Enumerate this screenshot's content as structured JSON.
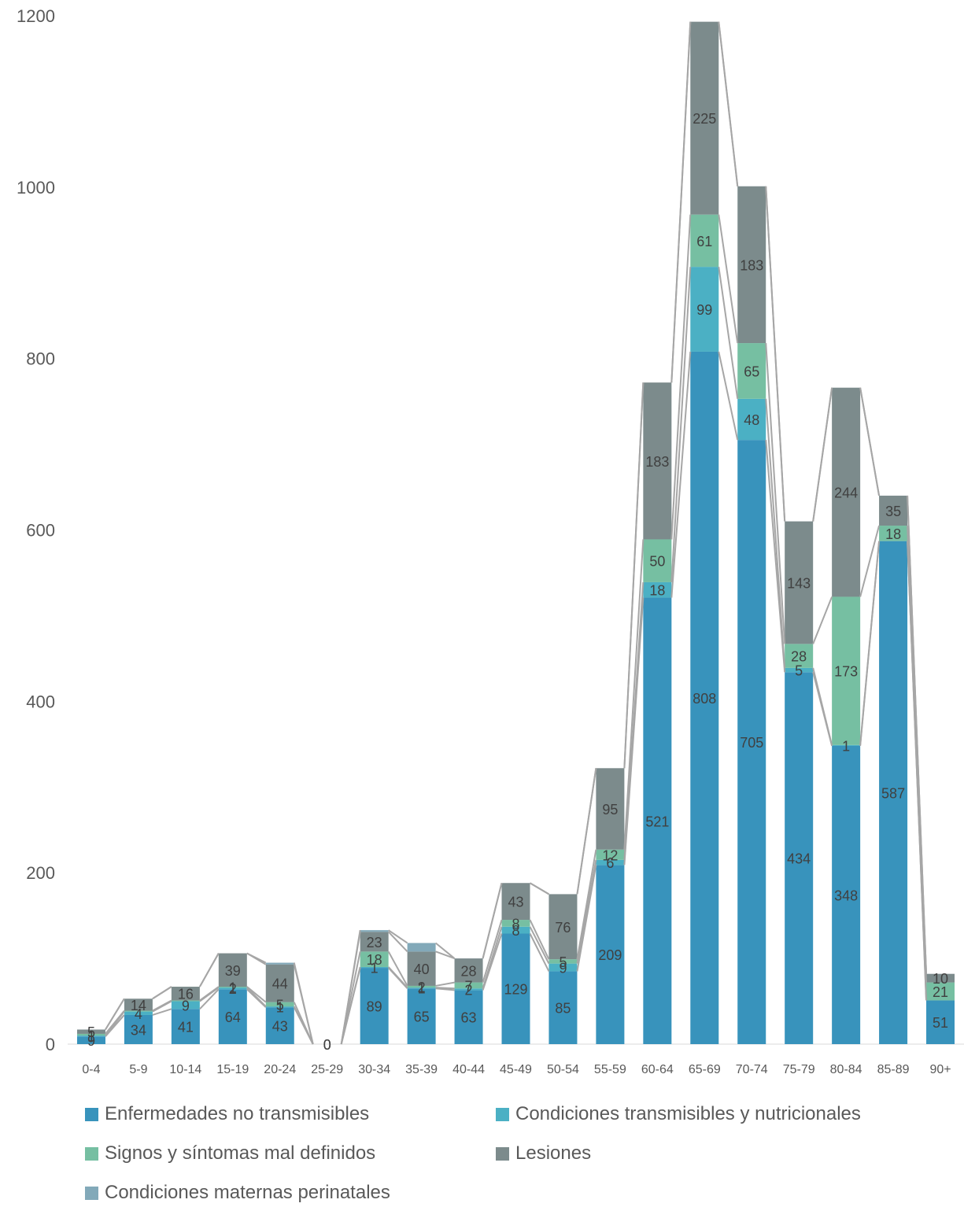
{
  "chart_data": {
    "type": "bar",
    "stacked": true,
    "title": "",
    "xlabel": "",
    "ylabel": "",
    "ylim": [
      0,
      1200
    ],
    "yticks": [
      "0",
      "200",
      "400",
      "600",
      "800",
      "1000",
      "1200"
    ],
    "grid": false,
    "legend_position": "bottom",
    "series_lines": true,
    "categories": [
      "0-4",
      "5-9",
      "10-14",
      "15-19",
      "20-24",
      "25-29",
      "30-34",
      "35-39",
      "40-44",
      "45-49",
      "50-54",
      "55-59",
      "60-64",
      "65-69",
      "70-74",
      "75-79",
      "80-84",
      "85-89",
      "90+"
    ],
    "series": [
      {
        "name": "Enfermedades no transmisibles",
        "color": "#3893BC",
        "values": [
          9,
          34,
          41,
          64,
          43,
          0,
          89,
          65,
          63,
          129,
          85,
          209,
          521,
          808,
          705,
          434,
          348,
          587,
          51
        ],
        "labels": [
          "9",
          "34",
          "41",
          "64",
          "43",
          "0",
          "89",
          "65",
          "63",
          "129",
          "85",
          "209",
          "521",
          "808",
          "705",
          "434",
          "348",
          "587",
          "51"
        ]
      },
      {
        "name": "Condiciones transmisibles y nutricionales",
        "color": "#4BB0C4",
        "values": [
          1,
          4,
          9,
          2,
          1,
          0,
          1,
          1,
          2,
          8,
          9,
          6,
          18,
          99,
          48,
          5,
          1,
          0,
          0
        ],
        "labels": [
          "1",
          "4",
          "9",
          "2",
          "1",
          "",
          "1",
          "1",
          "2",
          "8",
          "9",
          "6",
          "18",
          "99",
          "48",
          "5",
          "1",
          "",
          ""
        ]
      },
      {
        "name": "Signos y síntomas mal definidos",
        "color": "#76BFA2",
        "values": [
          2,
          1,
          1,
          1,
          5,
          0,
          18,
          2,
          7,
          8,
          5,
          12,
          50,
          61,
          65,
          28,
          173,
          18,
          21
        ],
        "labels": [
          "",
          "",
          "",
          "1",
          "5",
          "",
          "18",
          "2",
          "7",
          "8",
          "5",
          "12",
          "50",
          "61",
          "65",
          "28",
          "173",
          "18",
          "21"
        ]
      },
      {
        "name": "Lesiones",
        "color": "#7C8B8C",
        "values": [
          5,
          14,
          16,
          39,
          44,
          0,
          23,
          40,
          28,
          43,
          76,
          95,
          183,
          225,
          183,
          143,
          244,
          35,
          10
        ],
        "labels": [
          "5",
          "14",
          "16",
          "39",
          "44",
          "",
          "23",
          "40",
          "28",
          "43",
          "76",
          "95",
          "183",
          "225",
          "183",
          "143",
          "244",
          "35",
          "10"
        ]
      },
      {
        "name": "Condiciones maternas perinatales",
        "color": "#82A9B9",
        "values": [
          0,
          0,
          0,
          0,
          2,
          0,
          2,
          10,
          0,
          0,
          0,
          0,
          0,
          0,
          0,
          0,
          0,
          0,
          0
        ],
        "labels": [
          "",
          "",
          "",
          "",
          "",
          "0",
          "",
          "",
          "",
          "",
          "",
          "",
          "",
          "",
          "",
          "",
          "",
          "",
          ""
        ]
      }
    ]
  }
}
